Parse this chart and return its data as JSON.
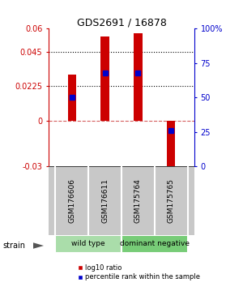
{
  "title": "GDS2691 / 16878",
  "samples": [
    "GSM176606",
    "GSM176611",
    "GSM175764",
    "GSM175765"
  ],
  "log10_ratio": [
    0.03,
    0.055,
    0.057,
    -0.033
  ],
  "percentile_rank": [
    0.5,
    0.68,
    0.68,
    0.26
  ],
  "groups": [
    {
      "name": "wild type",
      "indices": [
        0,
        1
      ],
      "color": "#aaddaa"
    },
    {
      "name": "dominant negative",
      "indices": [
        2,
        3
      ],
      "color": "#77cc77"
    }
  ],
  "bar_color": "#cc0000",
  "blue_marker_color": "#0000cc",
  "ylim_left": [
    -0.03,
    0.06
  ],
  "ylim_right": [
    0,
    1
  ],
  "yticks_left": [
    -0.03,
    0,
    0.0225,
    0.045,
    0.06
  ],
  "yticks_right": [
    0,
    0.25,
    0.5,
    0.75,
    1.0
  ],
  "ytick_labels_right": [
    "0",
    "25",
    "50",
    "75",
    "100%"
  ],
  "ytick_labels_left": [
    "-0.03",
    "0",
    "0.0225",
    "0.045",
    "0.06"
  ],
  "hlines_dotted": [
    0.045,
    0.0225
  ],
  "hline_dashed": 0,
  "bar_width": 0.25,
  "strain_label": "strain",
  "legend_red": "log10 ratio",
  "legend_blue": "percentile rank within the sample",
  "left_axis_color": "#cc0000",
  "right_axis_color": "#0000cc",
  "bg_color": "#ffffff",
  "label_bg": "#c8c8c8"
}
